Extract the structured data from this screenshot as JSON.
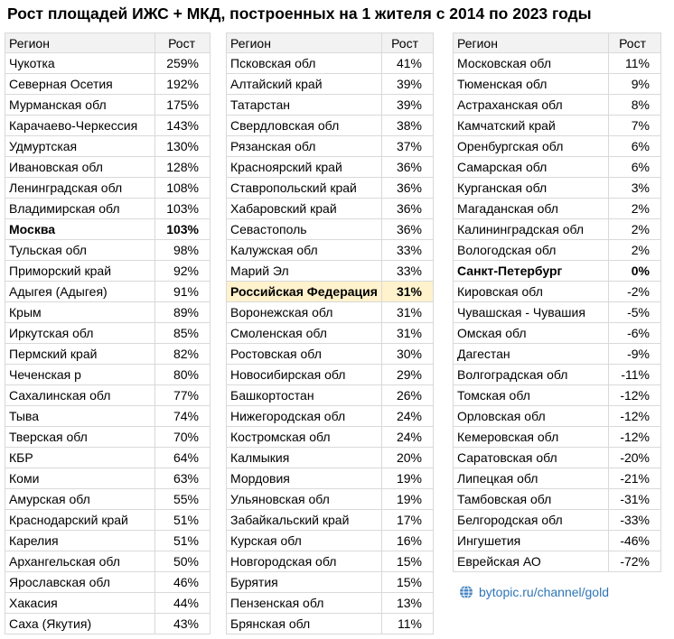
{
  "title": "Рост площадей ИЖС + МКД, построенных на 1 жителя с 2014 по 2023 годы",
  "header": {
    "region": "Регион",
    "growth": "Рост"
  },
  "footer_link": "bytopic.ru/channel/gold",
  "colors": {
    "header_bg": "#f2f2f2",
    "highlight_bg": "#fff2cc",
    "link": "#2e75b6"
  },
  "chart_data": {
    "type": "table",
    "title": "Рост площадей ИЖС + МКД, построенных на 1 жителя с 2014 по 2023 годы",
    "columns": [
      "Регион",
      "Рост"
    ],
    "tables": [
      {
        "rows": [
          {
            "region": "Чукотка",
            "growth": "259%"
          },
          {
            "region": "Северная Осетия",
            "growth": "192%"
          },
          {
            "region": "Мурманская обл",
            "growth": "175%"
          },
          {
            "region": "Карачаево-Черкессия",
            "growth": "143%"
          },
          {
            "region": "Удмуртская",
            "growth": "130%"
          },
          {
            "region": "Ивановская обл",
            "growth": "128%"
          },
          {
            "region": "Ленинградская обл",
            "growth": "108%"
          },
          {
            "region": "Владимирская обл",
            "growth": "103%"
          },
          {
            "region": "Москва",
            "growth": "103%",
            "style": "bold"
          },
          {
            "region": "Тульская обл",
            "growth": "98%"
          },
          {
            "region": "Приморский край",
            "growth": "92%"
          },
          {
            "region": "Адыгея (Адыгея)",
            "growth": "91%"
          },
          {
            "region": "Крым",
            "growth": "89%"
          },
          {
            "region": "Иркутская обл",
            "growth": "85%"
          },
          {
            "region": "Пермский край",
            "growth": "82%"
          },
          {
            "region": "Чеченская р",
            "growth": "80%"
          },
          {
            "region": "Сахалинская обл",
            "growth": "77%"
          },
          {
            "region": "Тыва",
            "growth": "74%"
          },
          {
            "region": "Тверская обл",
            "growth": "70%"
          },
          {
            "region": "КБР",
            "growth": "64%"
          },
          {
            "region": "Коми",
            "growth": "63%"
          },
          {
            "region": "Амурская обл",
            "growth": "55%"
          },
          {
            "region": "Краснодарский край",
            "growth": "51%"
          },
          {
            "region": "Карелия",
            "growth": "51%"
          },
          {
            "region": "Архангельская обл",
            "growth": "50%"
          },
          {
            "region": "Ярославская обл",
            "growth": "46%"
          },
          {
            "region": "Хакасия",
            "growth": "44%"
          },
          {
            "region": "Саха (Якутия)",
            "growth": "43%"
          }
        ]
      },
      {
        "rows": [
          {
            "region": "Псковская обл",
            "growth": "41%"
          },
          {
            "region": "Алтайский край",
            "growth": "39%"
          },
          {
            "region": "Татарстан",
            "growth": "39%"
          },
          {
            "region": "Свердловская обл",
            "growth": "38%"
          },
          {
            "region": "Рязанская обл",
            "growth": "37%"
          },
          {
            "region": "Красноярский край",
            "growth": "36%"
          },
          {
            "region": "Ставропольский край",
            "growth": "36%"
          },
          {
            "region": "Хабаровский край",
            "growth": "36%"
          },
          {
            "region": "Севастополь",
            "growth": "36%"
          },
          {
            "region": "Калужская обл",
            "growth": "33%"
          },
          {
            "region": "Марий Эл",
            "growth": "33%"
          },
          {
            "region": "Российская Федерация",
            "growth": "31%",
            "style": "highlight"
          },
          {
            "region": "Воронежская обл",
            "growth": "31%"
          },
          {
            "region": "Смоленская обл",
            "growth": "31%"
          },
          {
            "region": "Ростовская обл",
            "growth": "30%"
          },
          {
            "region": "Новосибирская обл",
            "growth": "29%"
          },
          {
            "region": "Башкортостан",
            "growth": "26%"
          },
          {
            "region": "Нижегородская обл",
            "growth": "24%"
          },
          {
            "region": "Костромская обл",
            "growth": "24%"
          },
          {
            "region": "Калмыкия",
            "growth": "20%"
          },
          {
            "region": "Мордовия",
            "growth": "19%"
          },
          {
            "region": "Ульяновская обл",
            "growth": "19%"
          },
          {
            "region": "Забайкальский край",
            "growth": "17%"
          },
          {
            "region": "Курская обл",
            "growth": "16%"
          },
          {
            "region": "Новгородская обл",
            "growth": "15%"
          },
          {
            "region": "Бурятия",
            "growth": "15%"
          },
          {
            "region": "Пензенская обл",
            "growth": "13%"
          },
          {
            "region": "Брянская обл",
            "growth": "11%"
          }
        ]
      },
      {
        "rows": [
          {
            "region": "Московская обл",
            "growth": "11%"
          },
          {
            "region": "Тюменская обл",
            "growth": "9%"
          },
          {
            "region": "Астраханская обл",
            "growth": "8%"
          },
          {
            "region": "Камчатский край",
            "growth": "7%"
          },
          {
            "region": "Оренбургская обл",
            "growth": "6%"
          },
          {
            "region": "Самарская обл",
            "growth": "6%"
          },
          {
            "region": "Курганская обл",
            "growth": "3%"
          },
          {
            "region": "Магаданская обл",
            "growth": "2%"
          },
          {
            "region": "Калининградская обл",
            "growth": "2%"
          },
          {
            "region": "Вологодская обл",
            "growth": "2%"
          },
          {
            "region": "Санкт-Петербург",
            "growth": "0%",
            "style": "bold"
          },
          {
            "region": "Кировская обл",
            "growth": "-2%"
          },
          {
            "region": "Чувашская - Чувашия",
            "growth": "-5%"
          },
          {
            "region": "Омская обл",
            "growth": "-6%"
          },
          {
            "region": "Дагестан",
            "growth": "-9%"
          },
          {
            "region": "Волгоградская обл",
            "growth": "-11%"
          },
          {
            "region": "Томская обл",
            "growth": "-12%"
          },
          {
            "region": "Орловская обл",
            "growth": "-12%"
          },
          {
            "region": "Кемеровская обл",
            "growth": "-12%"
          },
          {
            "region": "Саратовская обл",
            "growth": "-20%"
          },
          {
            "region": "Липецкая обл",
            "growth": "-21%"
          },
          {
            "region": "Тамбовская обл",
            "growth": "-31%"
          },
          {
            "region": "Белгородская обл",
            "growth": "-33%"
          },
          {
            "region": "Ингушетия",
            "growth": "-46%"
          },
          {
            "region": "Еврейская АО",
            "growth": "-72%"
          }
        ]
      }
    ]
  }
}
